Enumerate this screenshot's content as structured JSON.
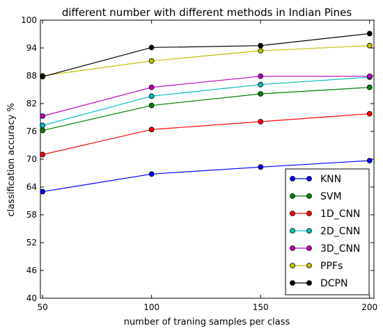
{
  "chart_data": {
    "type": "line",
    "title": "different number with different methods in Indian Pines",
    "xlabel": "number of traning samples per class",
    "ylabel": "classification accuracy %",
    "x": [
      50,
      100,
      150,
      200
    ],
    "xticks": [
      "50",
      "100",
      "150",
      "200"
    ],
    "xlim": [
      49,
      202
    ],
    "ylim": [
      40,
      100
    ],
    "yticks": [
      "40",
      "46",
      "52",
      "58",
      "64",
      "70",
      "76",
      "82",
      "88",
      "94",
      "100"
    ],
    "grid": false,
    "legend_position": "lower-right",
    "series": [
      {
        "name": "KNN",
        "color": "#0000ff",
        "values": [
          63.0,
          66.8,
          68.3,
          69.7
        ]
      },
      {
        "name": "SVM",
        "color": "#008000",
        "values": [
          76.2,
          81.6,
          84.1,
          85.5
        ]
      },
      {
        "name": "1D_CNN",
        "color": "#ff0000",
        "values": [
          71.0,
          76.4,
          78.1,
          79.8
        ]
      },
      {
        "name": "2D_CNN",
        "color": "#00bfbf",
        "values": [
          77.3,
          83.6,
          86.1,
          87.7
        ]
      },
      {
        "name": "3D_CNN",
        "color": "#bf00bf",
        "values": [
          79.3,
          85.5,
          87.9,
          87.9
        ]
      },
      {
        "name": "PPFs",
        "color": "#bfbf00",
        "values": [
          88.0,
          91.2,
          93.4,
          94.5
        ]
      },
      {
        "name": "DCPN",
        "color": "#000000",
        "values": [
          87.8,
          94.1,
          94.5,
          97.1
        ]
      }
    ]
  }
}
